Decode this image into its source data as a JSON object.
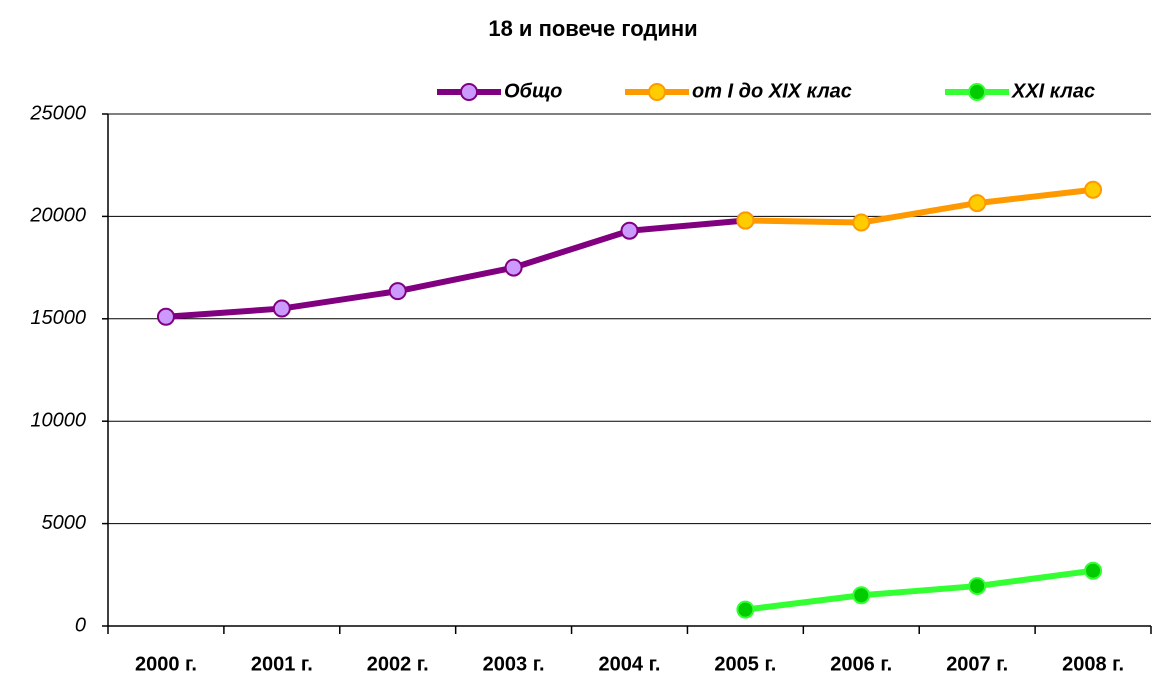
{
  "chart_data": {
    "type": "line",
    "title": "18 и повече години",
    "categories": [
      "2000 г.",
      "2001 г.",
      "2002 г.",
      "2003 г.",
      "2004 г.",
      "2005 г.",
      "2006 г.",
      "2007 г.",
      "2008 г."
    ],
    "series": [
      {
        "name": "Общо",
        "color": "#800080",
        "marker_fill": "#cc99ff",
        "values": [
          15100,
          15500,
          16350,
          17500,
          19300,
          19800,
          null,
          null,
          null
        ]
      },
      {
        "name": "от I до XIX клас",
        "color": "#ff9900",
        "marker_fill": "#ffcc00",
        "values": [
          null,
          null,
          null,
          null,
          null,
          19800,
          19700,
          20650,
          21300
        ]
      },
      {
        "name": "XXI клас",
        "color": "#33ff33",
        "marker_fill": "#00cc00",
        "values": [
          null,
          null,
          null,
          null,
          null,
          800,
          1500,
          1950,
          2700
        ]
      }
    ],
    "ylim": [
      0,
      25000
    ],
    "yticks": [
      0,
      5000,
      10000,
      15000,
      20000,
      25000
    ],
    "grid": true,
    "legend": "top"
  }
}
